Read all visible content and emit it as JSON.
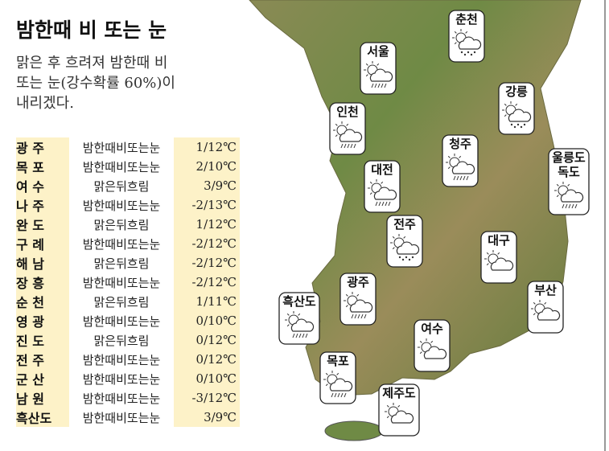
{
  "title": "밤한때 비 또는 눈",
  "description": [
    "맑은 후 흐려져 밤한때 비",
    "또는 눈(강수확률 60%)이",
    "내리겠다."
  ],
  "table": {
    "rows": [
      [
        "광 주",
        "밤한때비또는눈",
        "1/12℃"
      ],
      [
        "목 포",
        "밤한때비또는눈",
        "2/10℃"
      ],
      [
        "여 수",
        "맑은뒤흐림",
        "3/9℃"
      ],
      [
        "나 주",
        "밤한때비또는눈",
        "-2/13℃"
      ],
      [
        "완 도",
        "맑은뒤흐림",
        "1/12℃"
      ],
      [
        "구 례",
        "밤한때비또는눈",
        "-2/12℃"
      ],
      [
        "해 남",
        "맑은뒤흐림",
        "-2/12℃"
      ],
      [
        "장 흥",
        "밤한때비또는눈",
        "-2/12℃"
      ],
      [
        "순 천",
        "맑은뒤흐림",
        "1/11℃"
      ],
      [
        "영 광",
        "밤한때비또는눈",
        "0/10℃"
      ],
      [
        "진 도",
        "맑은뒤흐림",
        "0/12℃"
      ],
      [
        "전 주",
        "밤한때비또는눈",
        "0/12℃"
      ],
      [
        "군 산",
        "밤한때비또는눈",
        "0/10℃"
      ],
      [
        "남 원",
        "밤한때비또는눈",
        "-3/12℃"
      ],
      [
        "흑산도",
        "밤한때비또는눈",
        "3/9℃"
      ]
    ]
  },
  "map": {
    "labels": [
      [
        "춘천"
      ],
      [
        "서울"
      ],
      [
        "강릉"
      ],
      [
        "인천"
      ],
      [
        "청주"
      ],
      [
        "울릉도",
        "독도"
      ],
      [
        "대전"
      ],
      [
        "전주"
      ],
      [
        "대구"
      ],
      [
        "광주"
      ],
      [
        "흑산도"
      ],
      [
        "부산"
      ],
      [
        "여수"
      ],
      [
        "목포"
      ],
      [
        "제주도"
      ]
    ]
  }
}
